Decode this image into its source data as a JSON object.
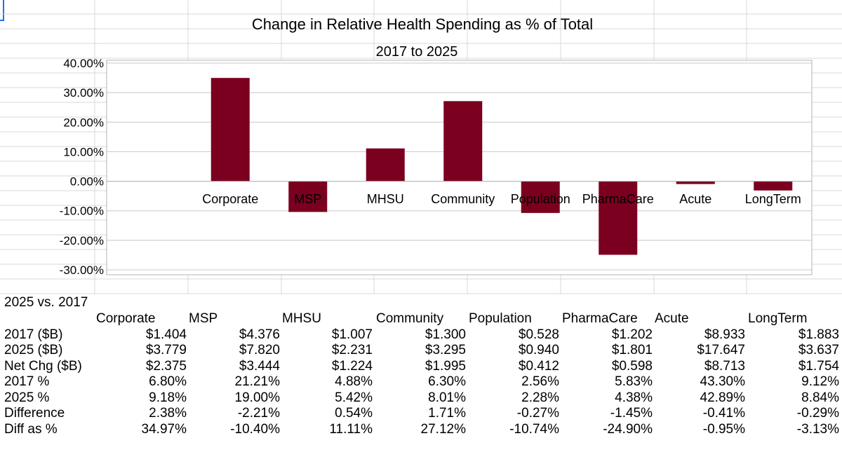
{
  "colors": {
    "bar": "#7b0020",
    "grid": "#c8c8c8",
    "axis": "#b3b3b3"
  },
  "chart_data": {
    "type": "bar",
    "title": "Change in Relative Health Spending as % of Total",
    "subtitle": "2017 to 2025",
    "categories": [
      "Corporate",
      "MSP",
      "MHSU",
      "Community",
      "Population",
      "PharmaCare",
      "Acute",
      "LongTerm"
    ],
    "values": [
      34.97,
      -10.4,
      11.11,
      27.12,
      -10.74,
      -24.9,
      -0.95,
      -3.13
    ],
    "ylim": [
      -30,
      40
    ],
    "yticks": [
      40,
      30,
      20,
      10,
      0,
      -10,
      -20,
      -30
    ],
    "ytick_labels": [
      "40.00%",
      "30.00%",
      "20.00%",
      "10.00%",
      "0.00%",
      "-10.00%",
      "-20.00%",
      "-30.00%"
    ],
    "xlabel": "",
    "ylabel": "",
    "grid": true,
    "legend": false
  },
  "table": {
    "heading": "2025 vs. 2017",
    "columns": [
      "Corporate",
      "MSP",
      "MHSU",
      "Community",
      "Population",
      "PharmaCare",
      "Acute",
      "LongTerm"
    ],
    "rows": [
      {
        "label": "2017 ($B)",
        "values": [
          "$1.404",
          "$4.376",
          "$1.007",
          "$1.300",
          "$0.528",
          "$1.202",
          "$8.933",
          "$1.883"
        ]
      },
      {
        "label": "2025 ($B)",
        "values": [
          "$3.779",
          "$7.820",
          "$2.231",
          "$3.295",
          "$0.940",
          "$1.801",
          "$17.647",
          "$3.637"
        ]
      },
      {
        "label": "Net Chg ($B)",
        "values": [
          "$2.375",
          "$3.444",
          "$1.224",
          "$1.995",
          "$0.412",
          "$0.598",
          "$8.713",
          "$1.754"
        ]
      },
      {
        "label": "2017 %",
        "values": [
          "6.80%",
          "21.21%",
          "4.88%",
          "6.30%",
          "2.56%",
          "5.83%",
          "43.30%",
          "9.12%"
        ]
      },
      {
        "label": "2025 %",
        "values": [
          "9.18%",
          "19.00%",
          "5.42%",
          "8.01%",
          "2.28%",
          "4.38%",
          "42.89%",
          "8.84%"
        ]
      },
      {
        "label": "Difference",
        "values": [
          "2.38%",
          "-2.21%",
          "0.54%",
          "1.71%",
          "-0.27%",
          "-1.45%",
          "-0.41%",
          "-0.29%"
        ]
      },
      {
        "label": "Diff as %",
        "values": [
          "34.97%",
          "-10.40%",
          "11.11%",
          "27.12%",
          "-10.74%",
          "-24.90%",
          "-0.95%",
          "-3.13%"
        ]
      }
    ]
  }
}
